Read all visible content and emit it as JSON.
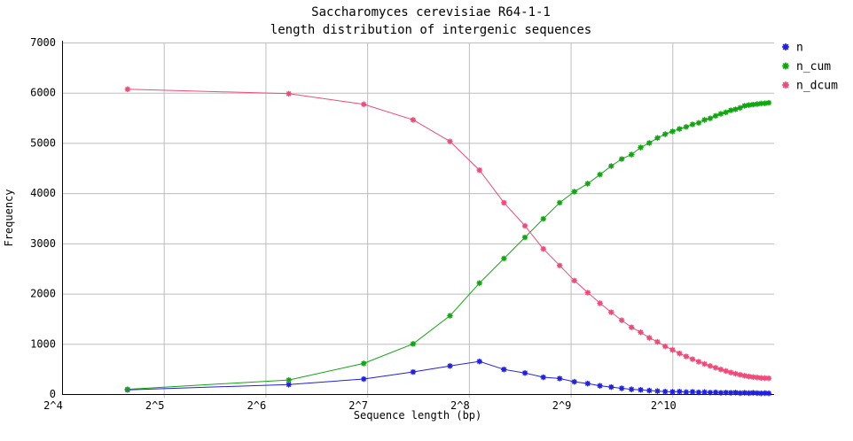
{
  "figure": {
    "background": "#ffffff",
    "grid_color": "#bdbdbd",
    "axis_color": "#000000",
    "text_color": "#000000"
  },
  "chart_data": {
    "type": "line",
    "title_lines": [
      "Saccharomyces cerevisiae R64-1-1",
      "length distribution of intergenic sequences"
    ],
    "xlabel": "Sequence length (bp)",
    "ylabel": "Frequency",
    "x_scale": "log2",
    "xlim": [
      16,
      2048
    ],
    "ylim": [
      0,
      7000
    ],
    "grid": true,
    "legend_position": "top-right-outside",
    "x_ticks": [
      {
        "value": 16,
        "label": "2^4"
      },
      {
        "value": 32,
        "label": "2^5"
      },
      {
        "value": 64,
        "label": "2^6"
      },
      {
        "value": 128,
        "label": "2^7"
      },
      {
        "value": 256,
        "label": "2^8"
      },
      {
        "value": 512,
        "label": "2^9"
      },
      {
        "value": 1024,
        "label": "2^10"
      }
    ],
    "y_ticks": [
      {
        "value": 0,
        "label": "0"
      },
      {
        "value": 1000,
        "label": "1000"
      },
      {
        "value": 2000,
        "label": "2000"
      },
      {
        "value": 3000,
        "label": "3000"
      },
      {
        "value": 4000,
        "label": "4000"
      },
      {
        "value": 5000,
        "label": "5000"
      },
      {
        "value": 6000,
        "label": "6000"
      },
      {
        "value": 7000,
        "label": "7000"
      }
    ],
    "x": [
      25,
      75,
      125,
      175,
      225,
      275,
      325,
      375,
      425,
      475,
      525,
      575,
      625,
      675,
      725,
      775,
      825,
      875,
      925,
      975,
      1025,
      1075,
      1125,
      1175,
      1225,
      1275,
      1325,
      1375,
      1425,
      1475,
      1525,
      1575,
      1625,
      1675,
      1725,
      1775,
      1825,
      1875,
      1925,
      1975
    ],
    "series": [
      {
        "name": "n",
        "color": "#2020df",
        "values": [
          85,
          190,
          300,
          440,
          560,
          650,
          490,
          420,
          335,
          310,
          245,
          210,
          165,
          140,
          115,
          95,
          85,
          70,
          60,
          50,
          45,
          50,
          40,
          45,
          35,
          40,
          30,
          35,
          25,
          30,
          25,
          30,
          20,
          25,
          20,
          25,
          20,
          15,
          20,
          15
        ]
      },
      {
        "name": "n_cum",
        "color": "#12a512",
        "values": [
          95,
          280,
          610,
          1000,
          1560,
          2210,
          2700,
          3120,
          3490,
          3810,
          4030,
          4190,
          4370,
          4540,
          4680,
          4770,
          4910,
          5000,
          5100,
          5175,
          5230,
          5280,
          5320,
          5370,
          5400,
          5460,
          5490,
          5540,
          5580,
          5610,
          5650,
          5670,
          5700,
          5740,
          5755,
          5765,
          5775,
          5785,
          5790,
          5800
        ]
      },
      {
        "name": "n_dcum",
        "color": "#ee4b78",
        "values": [
          6070,
          5980,
          5770,
          5460,
          5030,
          4460,
          3810,
          3350,
          2890,
          2560,
          2260,
          2020,
          1810,
          1630,
          1470,
          1330,
          1230,
          1120,
          1040,
          950,
          880,
          810,
          750,
          695,
          645,
          600,
          560,
          525,
          490,
          460,
          430,
          405,
          385,
          365,
          350,
          340,
          330,
          322,
          318,
          315
        ]
      }
    ]
  }
}
